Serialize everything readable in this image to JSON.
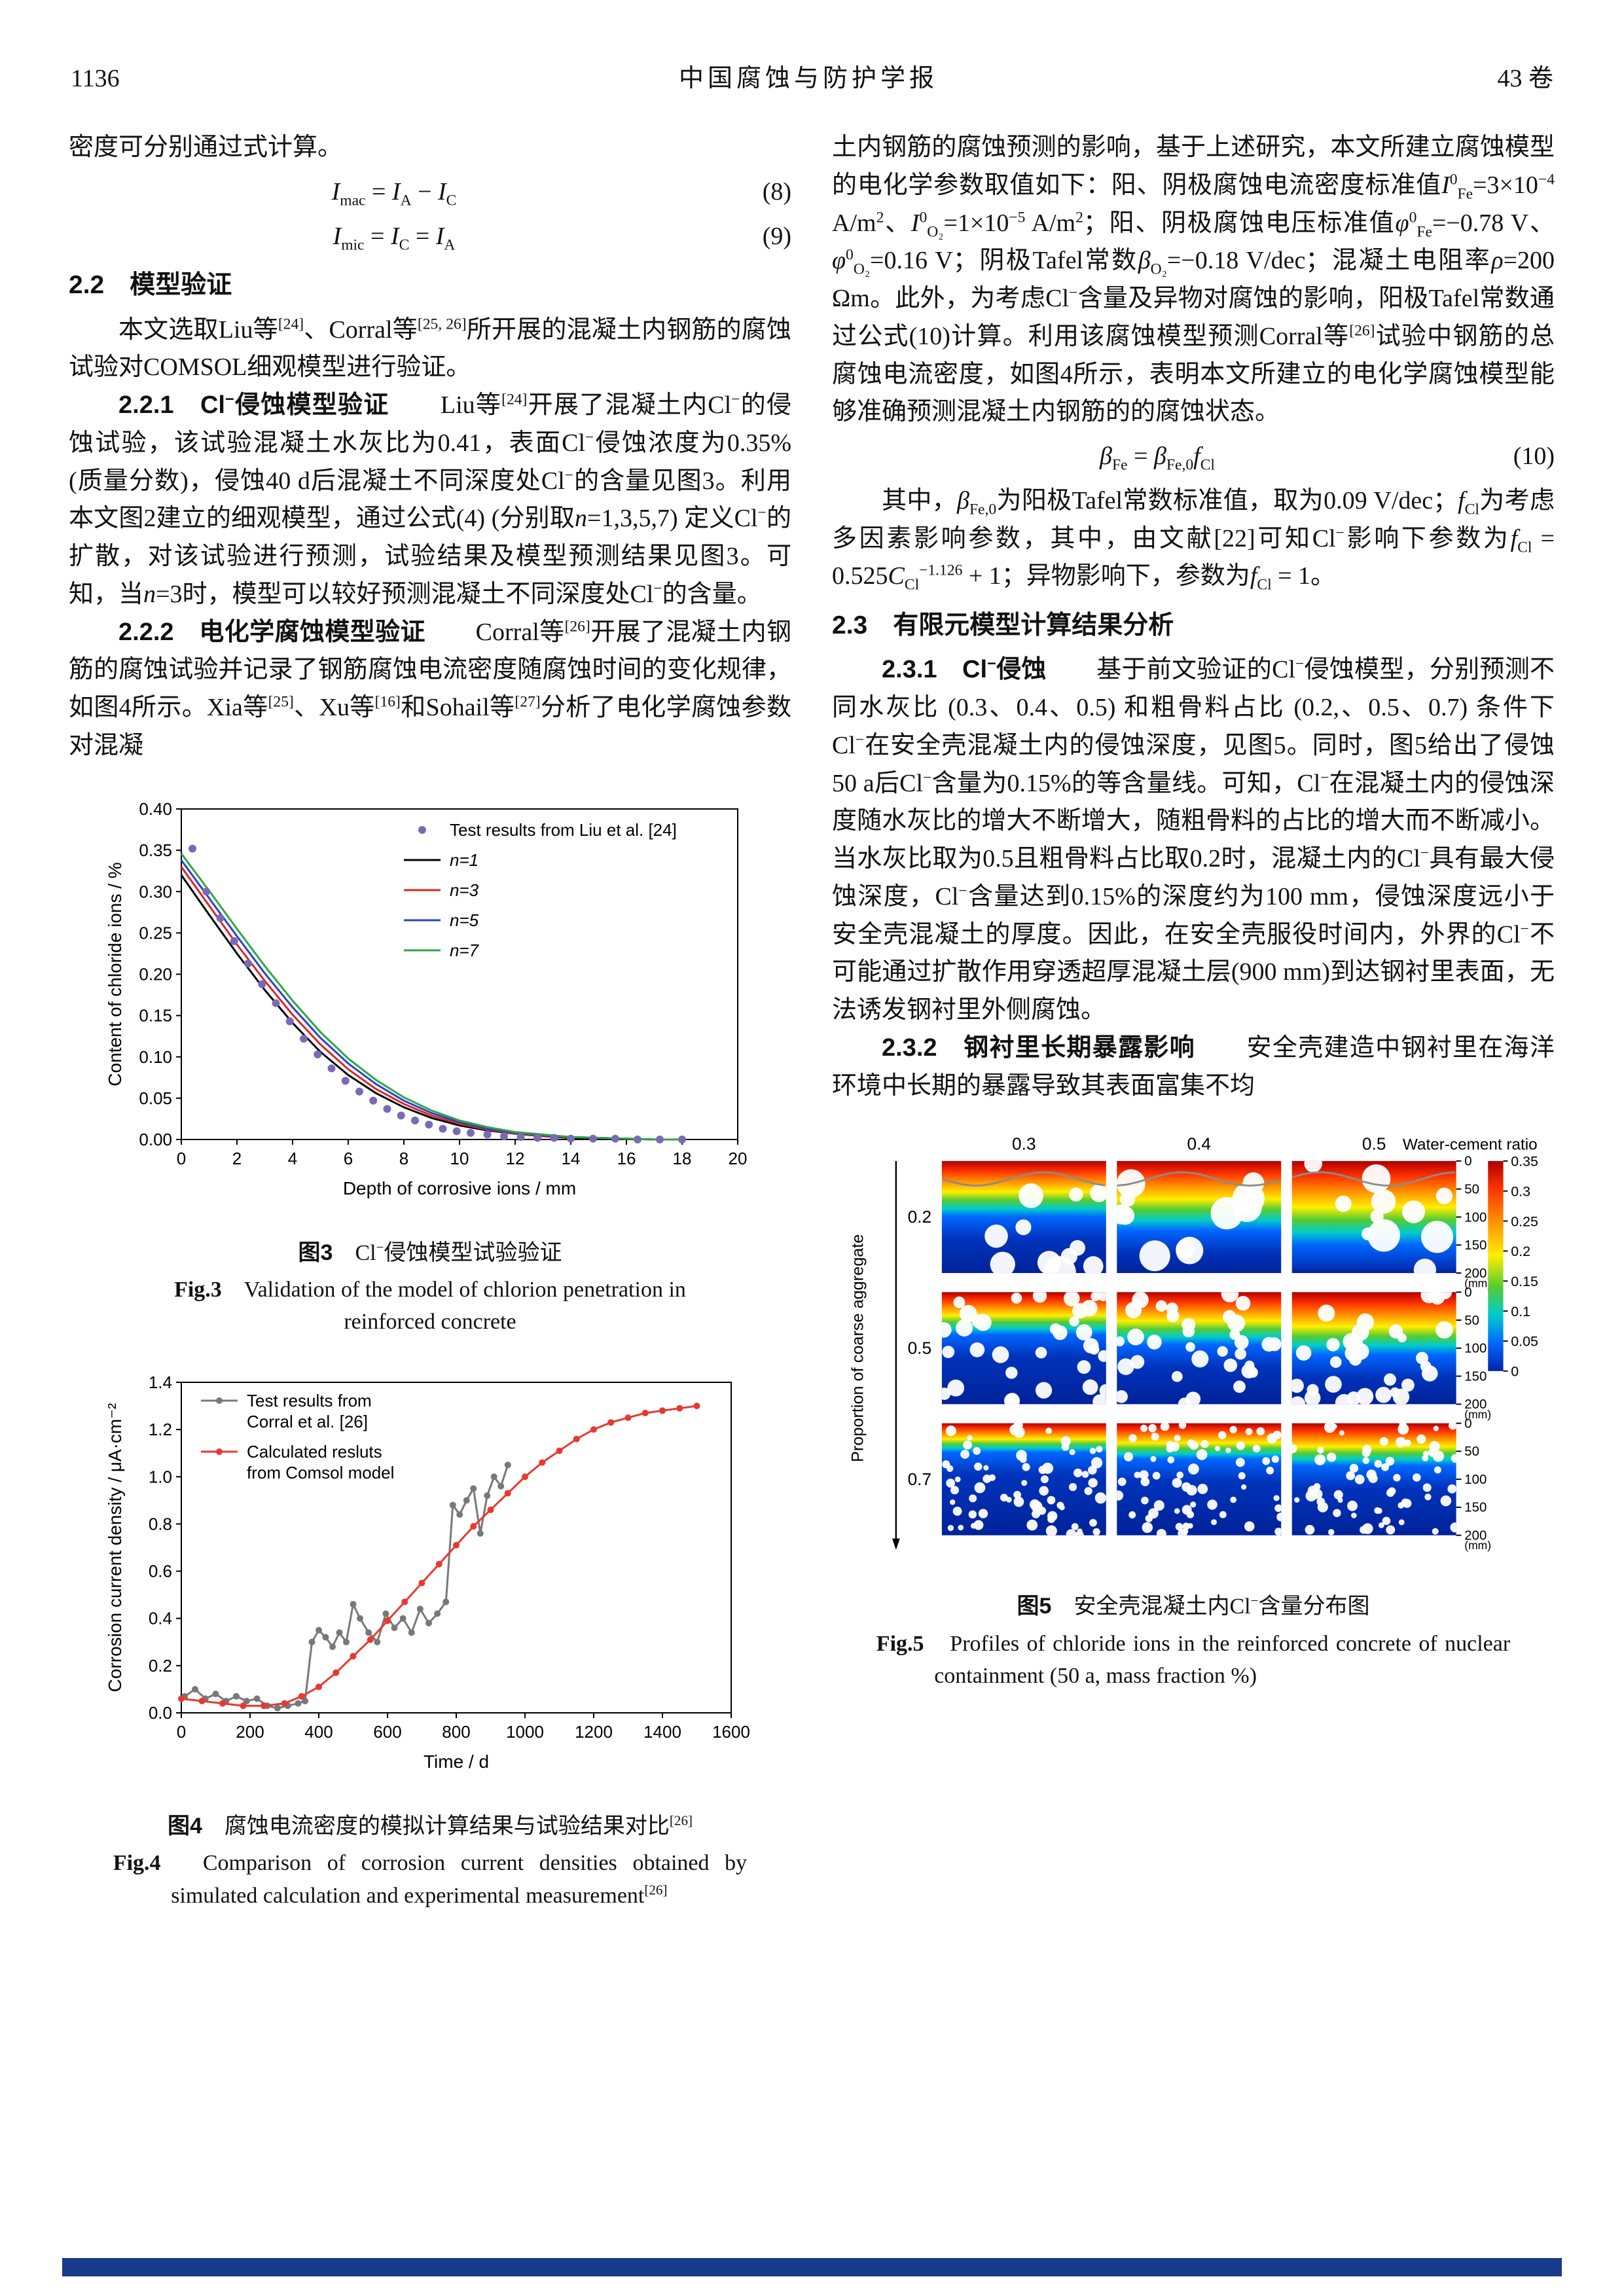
{
  "header": {
    "page_number": "1136",
    "journal": "中国腐蚀与防护学报",
    "volume": "43 卷"
  },
  "left": {
    "intro": "密度可分别通过式计算。",
    "eq8": {
      "body": "<i>I</i><sub>mac</sub> = <i>I</i><sub>A</sub> − <i>I</i><sub>C</sub>",
      "number": "(8)"
    },
    "eq9": {
      "body": "<i>I</i><sub>mic</sub> = <i>I</i><sub>C</sub> = <i>I</i><sub>A</sub>",
      "number": "(9)"
    },
    "sec22_title": "2.2　模型验证",
    "p1": "本文选取Liu等<sup>[24]</sup>、Corral等<sup>[25, 26]</sup>所开展的混凝土内钢筋的腐蚀试验对COMSOL细观模型进行验证。",
    "p221": "<b>2.2.1　Cl<sup>−</sup>侵蚀模型验证</b>　　Liu等<sup>[24]</sup>开展了混凝土内Cl<sup>−</sup>的侵蚀试验，该试验混凝土水灰比为0.41，表面Cl<sup>−</sup>侵蚀浓度为0.35% (质量分数)，侵蚀40 d后混凝土不同深度处Cl<sup>−</sup>的含量见图3。利用本文图2建立的细观模型，通过公式(4) (分别取<i>n</i>=1,3,5,7) 定义Cl<sup>−</sup>的扩散，对该试验进行预测，试验结果及模型预测结果见图3。可知，当<i>n</i>=3时，模型可以较好预测混凝土不同深度处Cl<sup>−</sup>的含量。",
    "p222": "<b>2.2.2　电化学腐蚀模型验证</b>　　Corral等<sup>[26]</sup>开展了混凝土内钢筋的腐蚀试验并记录了钢筋腐蚀电流密度随腐蚀时间的变化规律，如图4所示。Xia等<sup>[25]</sup>、Xu等<sup>[16]</sup>和Sohail等<sup>[27]</sup>分析了电化学腐蚀参数对混凝"
  },
  "right": {
    "p1": "土内钢筋的腐蚀预测的影响，基于上述研究，本文所建立腐蚀模型的电化学参数取值如下：阳、阴极腐蚀电流密度标准值<i>I</i><sup>0</sup><sub>Fe</sub>=3×10<sup>−4</sup> A/m<sup>2</sup>、<i>I</i><sup>0</sup><sub>O₂</sub>=1×10<sup>−5</sup> A/m<sup>2</sup>；阳、阴极腐蚀电压标准值<i>φ</i><sup>0</sup><sub>Fe</sub>=−0.78 V、<i>φ</i><sup>0</sup><sub>O₂</sub>=0.16 V；阴极Tafel常数<i>β</i><sub>O₂</sub>=−0.18 V/dec；混凝土电阻率<i>ρ</i>=200 Ωm。此外，为考虑Cl<sup>−</sup>含量及异物对腐蚀的影响，阳极Tafel常数通过公式(10)计算。利用该腐蚀模型预测Corral等<sup>[26]</sup>试验中钢筋的总腐蚀电流密度，如图4所示，表明本文所建立的电化学腐蚀模型能够准确预测混凝土内钢筋的的腐蚀状态。",
    "eq10": {
      "body": "<i>β</i><sub>Fe</sub> = <i>β</i><sub>Fe,0</sub><i>f</i><sub>Cl</sub>",
      "number": "(10)"
    },
    "p2": "其中，<i>β</i><sub>Fe,0</sub>为阳极Tafel常数标准值，取为0.09 V/dec；<i>f</i><sub>Cl</sub>为考虑多因素影响参数，其中，由文献[22]可知Cl<sup>−</sup>影响下参数为<i>f</i><sub>Cl</sub> = 0.525<i>C</i><sub>Cl</sub><sup>−1.126</sup> + 1；异物影响下，参数为<i>f</i><sub>Cl</sub> = 1。",
    "sec23_title": "2.3　有限元模型计算结果分析",
    "p231": "<b>2.3.1　Cl<sup>−</sup>侵蚀</b>　　基于前文验证的Cl<sup>−</sup>侵蚀模型，分别预测不同水灰比 (0.3、0.4、0.5) 和粗骨料占比 (0.2,、0.5、0.7) 条件下Cl<sup>−</sup>在安全壳混凝土内的侵蚀深度，见图5。同时，图5给出了侵蚀50 a后Cl<sup>−</sup>含量为0.15%的等含量线。可知，Cl<sup>−</sup>在混凝土内的侵蚀深度随水灰比的增大不断增大，随粗骨料的占比的增大而不断减小。当水灰比取为0.5且粗骨料占比取0.2时，混凝土内的Cl<sup>−</sup>具有最大侵蚀深度，Cl<sup>−</sup>含量达到0.15%的深度约为100 mm，侵蚀深度远小于安全壳混凝土的厚度。因此，在安全壳服役时间内，外界的Cl<sup>−</sup>不可能通过扩散作用穿透超厚混凝土层(900 mm)到达钢衬里表面，无法诱发钢衬里外侧腐蚀。",
    "p232": "<b>2.3.2　钢衬里长期暴露影响</b>　　安全壳建造中钢衬里在海洋环境中长期的暴露导致其表面富集不均"
  },
  "captions": {
    "fig3_zh": "<b>图3</b>　Cl<sup>−</sup>侵蚀模型试验验证",
    "fig3_en": "<b>Fig.3</b>　Validation of the model of chlorion penetration in reinforced concrete",
    "fig4_zh": "<b>图4</b>　腐蚀电流密度的模拟计算结果与试验结果对比<sup>[26]</sup>",
    "fig4_en": "<b>Fig.4</b>　Comparison of corrosion current densities obtained by simulated calculation and experimental measurement<sup>[26]</sup>",
    "fig5_zh": "<b>图5</b>　安全壳混凝土内Cl<sup>−</sup>含量分布图",
    "fig5_en": "<b>Fig.5</b>　Profiles of chloride ions in the reinforced concrete of nuclear containment (50 a, mass fraction %)"
  },
  "chart_data": [
    {
      "id": "fig3",
      "type": "line",
      "title": "",
      "xlabel": "Depth of corrosive ions / mm",
      "ylabel": "Content of chloride ions / %",
      "xlim": [
        0,
        20
      ],
      "ylim": [
        0,
        0.4
      ],
      "xticks": [
        "0",
        "2",
        "4",
        "6",
        "8",
        "10",
        "12",
        "14",
        "16",
        "18",
        "20"
      ],
      "yticks": [
        "0.00",
        "0.05",
        "0.10",
        "0.15",
        "0.20",
        "0.25",
        "0.30",
        "0.35",
        "0.40"
      ],
      "legend_position": "upper-right-inside",
      "scatter": {
        "name": "Test results from Liu et al. [24]",
        "color": "#7a6ab5",
        "x": [
          0.4,
          0.9,
          1.4,
          1.9,
          2.4,
          2.9,
          3.4,
          3.9,
          4.4,
          4.9,
          5.4,
          5.9,
          6.4,
          6.9,
          7.4,
          7.9,
          8.4,
          8.9,
          9.4,
          9.9,
          10.4,
          11.0,
          11.6,
          12.2,
          12.8,
          13.4,
          14.0,
          14.8,
          15.6,
          16.4,
          17.2,
          18.0
        ],
        "y": [
          0.352,
          0.3,
          0.268,
          0.24,
          0.213,
          0.188,
          0.165,
          0.143,
          0.122,
          0.103,
          0.086,
          0.071,
          0.058,
          0.047,
          0.037,
          0.029,
          0.023,
          0.018,
          0.013,
          0.01,
          0.008,
          0.006,
          0.004,
          0.003,
          0.002,
          0.002,
          0.001,
          0.001,
          0.001,
          0.0,
          0.0,
          0.0
        ]
      },
      "x": [
        0,
        1,
        2,
        3,
        4,
        5,
        6,
        7,
        8,
        9,
        10,
        11,
        12,
        13,
        14,
        15,
        16,
        17,
        18
      ],
      "series": [
        {
          "name": "n=1",
          "color": "#000000",
          "values": [
            0.32,
            0.272,
            0.225,
            0.181,
            0.141,
            0.106,
            0.078,
            0.056,
            0.039,
            0.026,
            0.017,
            0.011,
            0.007,
            0.004,
            0.002,
            0.001,
            0.001,
            0.0,
            0.0
          ]
        },
        {
          "name": "n=3",
          "color": "#e02423",
          "values": [
            0.33,
            0.283,
            0.236,
            0.192,
            0.151,
            0.115,
            0.085,
            0.061,
            0.043,
            0.029,
            0.019,
            0.012,
            0.007,
            0.004,
            0.003,
            0.002,
            0.001,
            0.0,
            0.0
          ]
        },
        {
          "name": "n=5",
          "color": "#2743c7",
          "values": [
            0.338,
            0.292,
            0.246,
            0.201,
            0.16,
            0.123,
            0.092,
            0.067,
            0.047,
            0.032,
            0.021,
            0.013,
            0.008,
            0.005,
            0.003,
            0.002,
            0.001,
            0.0,
            0.0
          ]
        },
        {
          "name": "n=7",
          "color": "#2fa644",
          "values": [
            0.346,
            0.301,
            0.255,
            0.21,
            0.168,
            0.13,
            0.098,
            0.072,
            0.051,
            0.035,
            0.023,
            0.015,
            0.009,
            0.006,
            0.003,
            0.002,
            0.001,
            0.0,
            0.0
          ]
        }
      ]
    },
    {
      "id": "fig4",
      "type": "line",
      "title": "",
      "xlabel": "Time / d",
      "ylabel": "Corrosion current density / μA·cm⁻²",
      "xlim": [
        0,
        1600
      ],
      "ylim": [
        0,
        1.4
      ],
      "xticks": [
        "0",
        "200",
        "400",
        "600",
        "800",
        "1000",
        "1200",
        "1400",
        "1600"
      ],
      "yticks": [
        "0.0",
        "0.2",
        "0.4",
        "0.6",
        "0.8",
        "1.0",
        "1.2",
        "1.4"
      ],
      "legend_position": "upper-left-inside",
      "series": [
        {
          "name": [
            "Test results from",
            "Corral et al. [26]"
          ],
          "color": "#787878",
          "marker": true,
          "x": [
            10,
            40,
            70,
            100,
            130,
            160,
            190,
            220,
            250,
            280,
            310,
            340,
            360,
            380,
            400,
            420,
            440,
            460,
            480,
            500,
            520,
            545,
            570,
            595,
            620,
            645,
            670,
            695,
            720,
            745,
            770,
            790,
            810,
            830,
            850,
            870,
            890,
            910,
            930,
            950
          ],
          "values": [
            0.07,
            0.1,
            0.06,
            0.08,
            0.05,
            0.07,
            0.05,
            0.06,
            0.03,
            0.02,
            0.03,
            0.04,
            0.05,
            0.3,
            0.35,
            0.32,
            0.28,
            0.34,
            0.3,
            0.46,
            0.4,
            0.34,
            0.3,
            0.42,
            0.36,
            0.4,
            0.34,
            0.44,
            0.38,
            0.42,
            0.47,
            0.88,
            0.84,
            0.9,
            0.95,
            0.76,
            0.92,
            1.0,
            0.96,
            1.05
          ]
        },
        {
          "name": [
            "Calculated resluts",
            "from Comsol model"
          ],
          "color": "#e8392f",
          "marker": true,
          "x": [
            0,
            60,
            120,
            180,
            240,
            300,
            350,
            400,
            450,
            500,
            550,
            600,
            650,
            700,
            750,
            800,
            850,
            900,
            950,
            1000,
            1050,
            1100,
            1150,
            1200,
            1250,
            1300,
            1350,
            1400,
            1450,
            1500
          ],
          "values": [
            0.06,
            0.05,
            0.04,
            0.03,
            0.03,
            0.04,
            0.07,
            0.11,
            0.17,
            0.24,
            0.31,
            0.39,
            0.47,
            0.55,
            0.63,
            0.71,
            0.79,
            0.86,
            0.93,
            1.0,
            1.06,
            1.11,
            1.16,
            1.2,
            1.23,
            1.25,
            1.27,
            1.28,
            1.29,
            1.3
          ]
        }
      ]
    },
    {
      "id": "fig5",
      "type": "heatmap",
      "title": "",
      "col_axis_label": "Water-cement ratio",
      "row_axis_label": "Proportion of coarse aggregate",
      "columns": [
        "0.3",
        "0.4",
        "0.5"
      ],
      "rows": [
        "0.2",
        "0.5",
        "0.7"
      ],
      "depth_ticks": [
        "0",
        "50",
        "100",
        "150",
        "200"
      ],
      "depth_unit": "(mm)",
      "colorbar_ticks": [
        "0.35",
        "0.3",
        "0.25",
        "0.2",
        "0.15",
        "0.1",
        "0.05",
        "0"
      ],
      "value_range": [
        0,
        0.35
      ],
      "cells": [
        {
          "row": "0.2",
          "col": "0.3",
          "penetration": 0.5
        },
        {
          "row": "0.2",
          "col": "0.4",
          "penetration": 0.62
        },
        {
          "row": "0.2",
          "col": "0.5",
          "penetration": 0.75
        },
        {
          "row": "0.5",
          "col": "0.3",
          "penetration": 0.38
        },
        {
          "row": "0.5",
          "col": "0.4",
          "penetration": 0.47
        },
        {
          "row": "0.5",
          "col": "0.5",
          "penetration": 0.56
        },
        {
          "row": "0.7",
          "col": "0.3",
          "penetration": 0.26
        },
        {
          "row": "0.7",
          "col": "0.4",
          "penetration": 0.32
        },
        {
          "row": "0.7",
          "col": "0.5",
          "penetration": 0.38
        }
      ],
      "aggregate_rows": [
        {
          "count": 11,
          "rmin": 10,
          "rmax": 26
        },
        {
          "count": 34,
          "rmin": 7,
          "rmax": 14
        },
        {
          "count": 70,
          "rmin": 4,
          "rmax": 9
        }
      ]
    }
  ]
}
